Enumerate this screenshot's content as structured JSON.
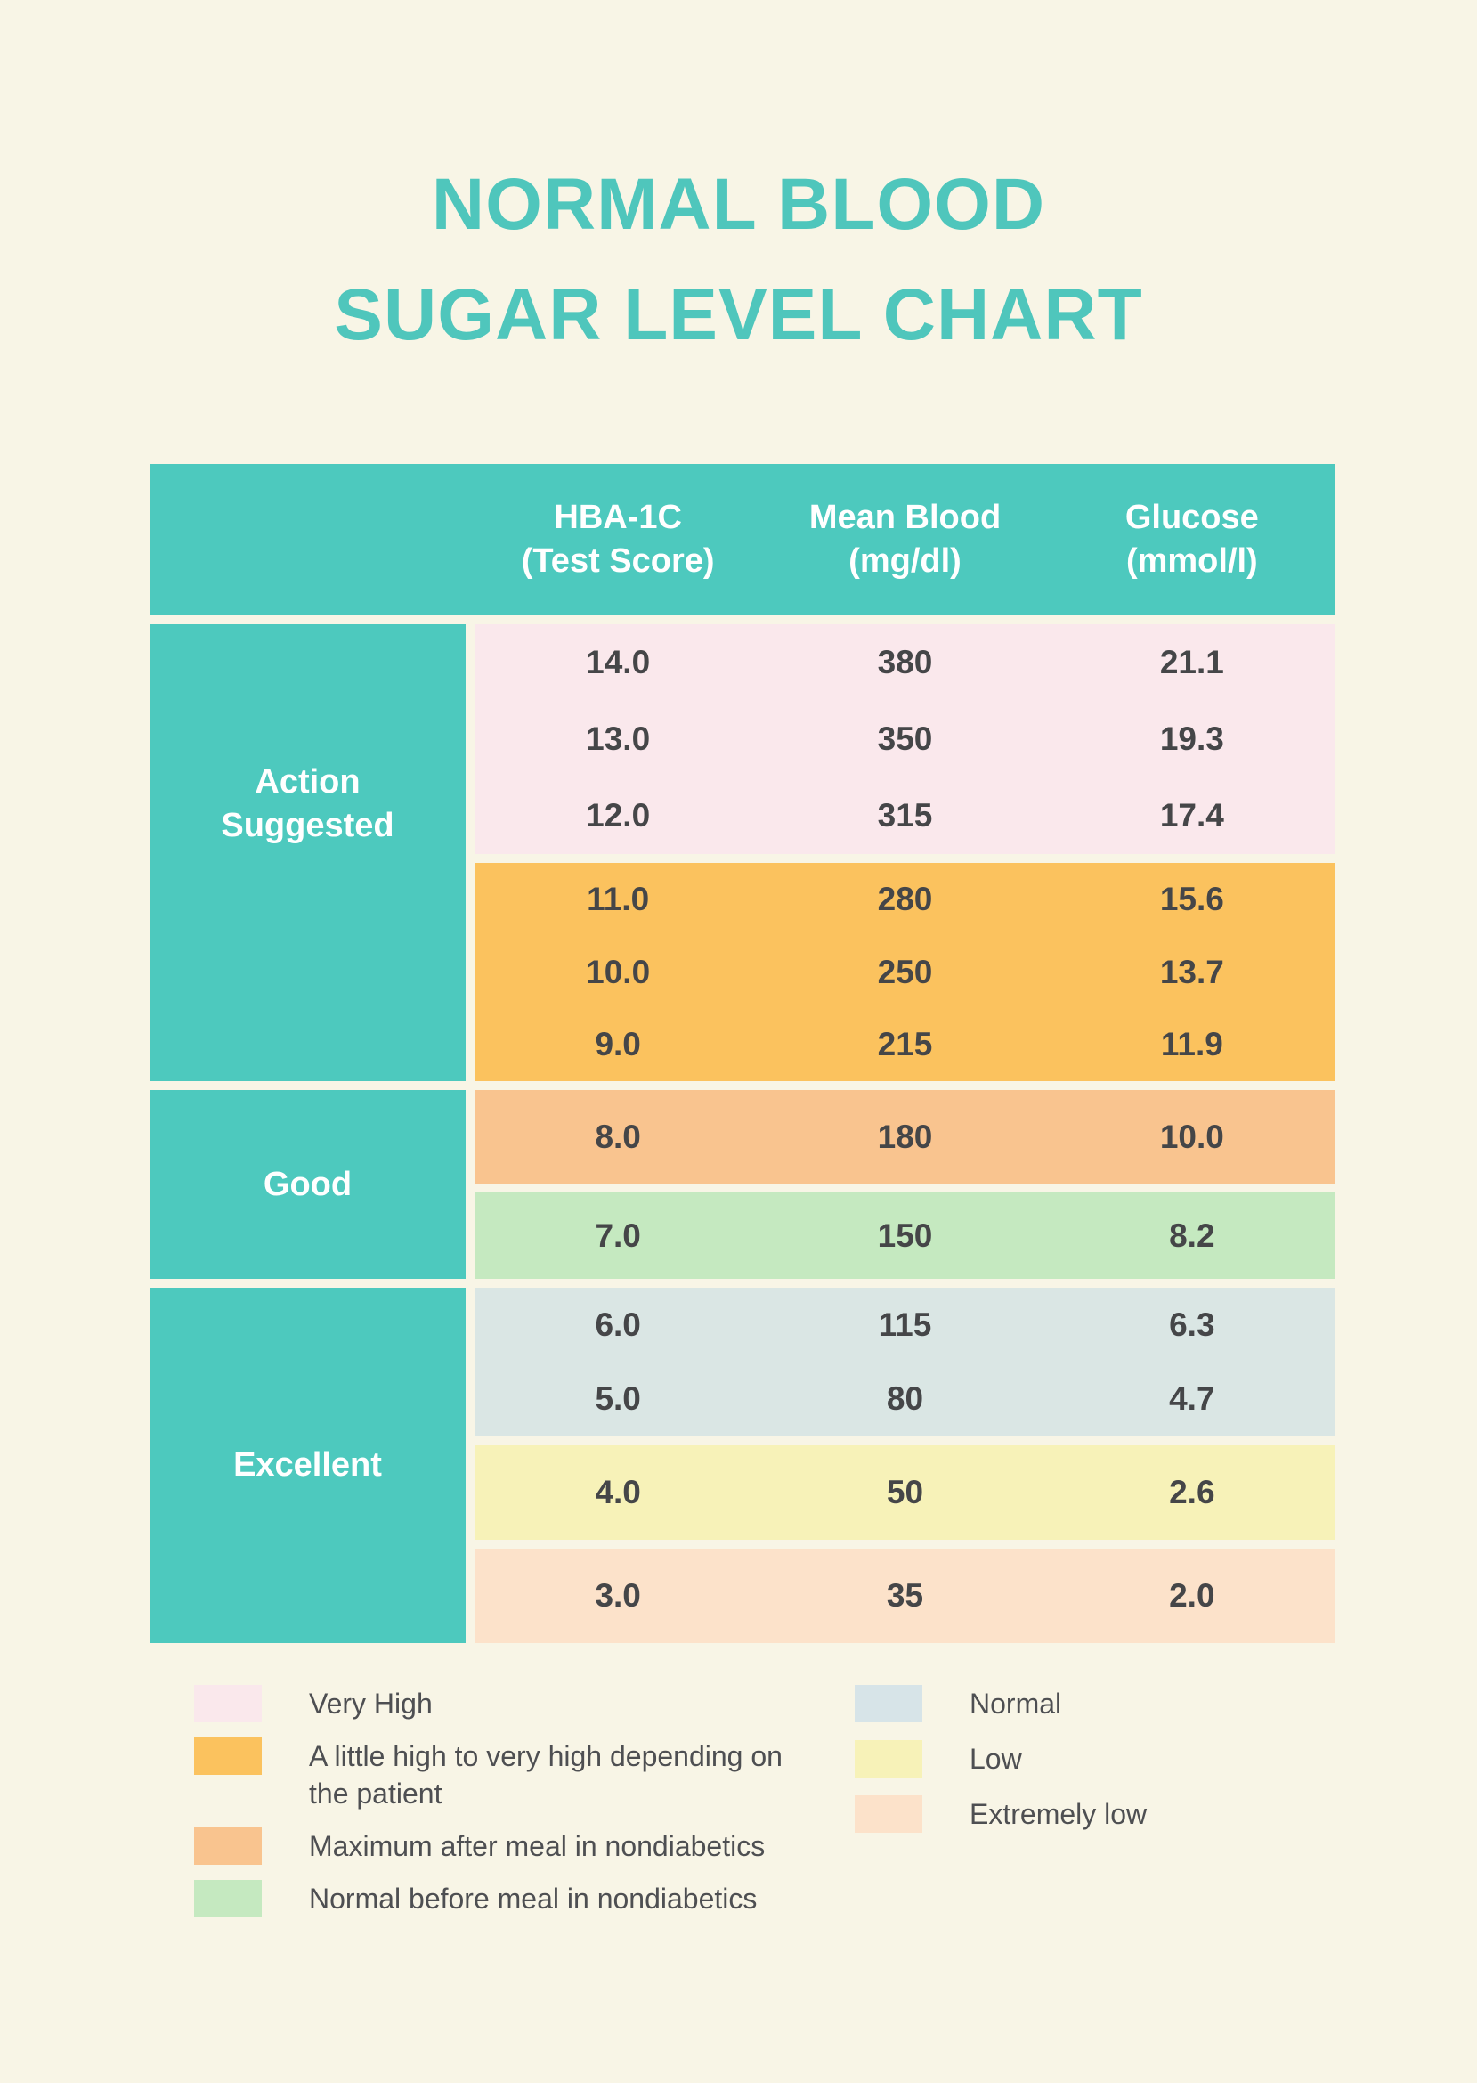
{
  "colors": {
    "background": "#F8F5E6",
    "teal": "#4DC9BE",
    "title": "#4FC6BC",
    "number_text": "#454648",
    "legend_text": "#4E4F52"
  },
  "title": {
    "line1": "NORMAL BLOOD",
    "line2": "SUGAR LEVEL CHART"
  },
  "table": {
    "header": [
      {
        "line1": "HBA-1C",
        "line2": "(Test Score)"
      },
      {
        "line1": "Mean Blood",
        "line2": "(mg/dl)"
      },
      {
        "line1": "Glucose",
        "line2": "(mmol/l)"
      }
    ],
    "sections": [
      {
        "label": "Action Suggested",
        "blocks": [
          {
            "zone": "Very High",
            "color": "#FAE8EC",
            "rows": [
              [
                "14.0",
                "380",
                "21.1"
              ],
              [
                "13.0",
                "350",
                "19.3"
              ],
              [
                "12.0",
                "315",
                "17.4"
              ]
            ]
          },
          {
            "zone": "A little high to very high depending on the patient",
            "color": "#FBC25E",
            "rows": [
              [
                "11.0",
                "280",
                "15.6"
              ],
              [
                "10.0",
                "250",
                "13.7"
              ],
              [
                "9.0",
                "215",
                "11.9"
              ]
            ]
          }
        ]
      },
      {
        "label": "Good",
        "blocks": [
          {
            "zone": "Maximum after meal in nondiabetics",
            "color": "#F9C48F",
            "rows": [
              [
                "8.0",
                "180",
                "10.0"
              ]
            ]
          },
          {
            "zone": "Normal before meal in nondiabetics",
            "color": "#C5E9C0",
            "rows": [
              [
                "7.0",
                "150",
                "8.2"
              ]
            ]
          }
        ]
      },
      {
        "label": "Excellent",
        "blocks": [
          {
            "zone": "Normal",
            "color": "#DAE6E4",
            "rows": [
              [
                "6.0",
                "115",
                "6.3"
              ],
              [
                "5.0",
                "80",
                "4.7"
              ]
            ]
          },
          {
            "zone": "Low",
            "color": "#F7F2B8",
            "rows": [
              [
                "4.0",
                "50",
                "2.6"
              ]
            ]
          },
          {
            "zone": "Extremely low",
            "color": "#FCE2CA",
            "rows": [
              [
                "3.0",
                "35",
                "2.0"
              ]
            ]
          }
        ]
      }
    ]
  },
  "legend": {
    "left": [
      {
        "label": "Very High",
        "color": "#FAE8EC"
      },
      {
        "label": "A little high to very high depending on the patient",
        "color": "#FBC25E"
      },
      {
        "label": "Maximum after meal in nondiabetics",
        "color": "#F9C48F"
      },
      {
        "label": "Normal before meal in nondiabetics",
        "color": "#C5E9C0"
      }
    ],
    "right": [
      {
        "label": "Normal",
        "color": "#D7E4E8"
      },
      {
        "label": "Low",
        "color": "#F7F2B8"
      },
      {
        "label": "Extremely low",
        "color": "#FCE2CA"
      }
    ]
  },
  "chart_data": {
    "type": "table",
    "title": "NORMAL BLOOD SUGAR LEVEL CHART",
    "columns": [
      "HBA-1C (Test Score)",
      "Mean Blood (mg/dl)",
      "Glucose (mmol/l)"
    ],
    "row_groups": [
      {
        "category": "Action Suggested",
        "zone": "Very High",
        "rows": [
          [
            14.0,
            380,
            21.1
          ],
          [
            13.0,
            350,
            19.3
          ],
          [
            12.0,
            315,
            17.4
          ]
        ]
      },
      {
        "category": "Action Suggested",
        "zone": "A little high to very high depending on the patient",
        "rows": [
          [
            11.0,
            280,
            15.6
          ],
          [
            10.0,
            250,
            13.7
          ],
          [
            9.0,
            215,
            11.9
          ]
        ]
      },
      {
        "category": "Good",
        "zone": "Maximum after meal in nondiabetics",
        "rows": [
          [
            8.0,
            180,
            10.0
          ]
        ]
      },
      {
        "category": "Good",
        "zone": "Normal before meal in nondiabetics",
        "rows": [
          [
            7.0,
            150,
            8.2
          ]
        ]
      },
      {
        "category": "Excellent",
        "zone": "Normal",
        "rows": [
          [
            6.0,
            115,
            6.3
          ],
          [
            5.0,
            80,
            4.7
          ]
        ]
      },
      {
        "category": "Excellent",
        "zone": "Low",
        "rows": [
          [
            4.0,
            50,
            2.6
          ]
        ]
      },
      {
        "category": "Excellent",
        "zone": "Extremely low",
        "rows": [
          [
            3.0,
            35,
            2.0
          ]
        ]
      }
    ],
    "legend_entries": [
      "Very High",
      "A little high to very high depending on the patient",
      "Maximum after meal in nondiabetics",
      "Normal before meal in nondiabetics",
      "Normal",
      "Low",
      "Extremely low"
    ],
    "legend_position": "bottom"
  }
}
